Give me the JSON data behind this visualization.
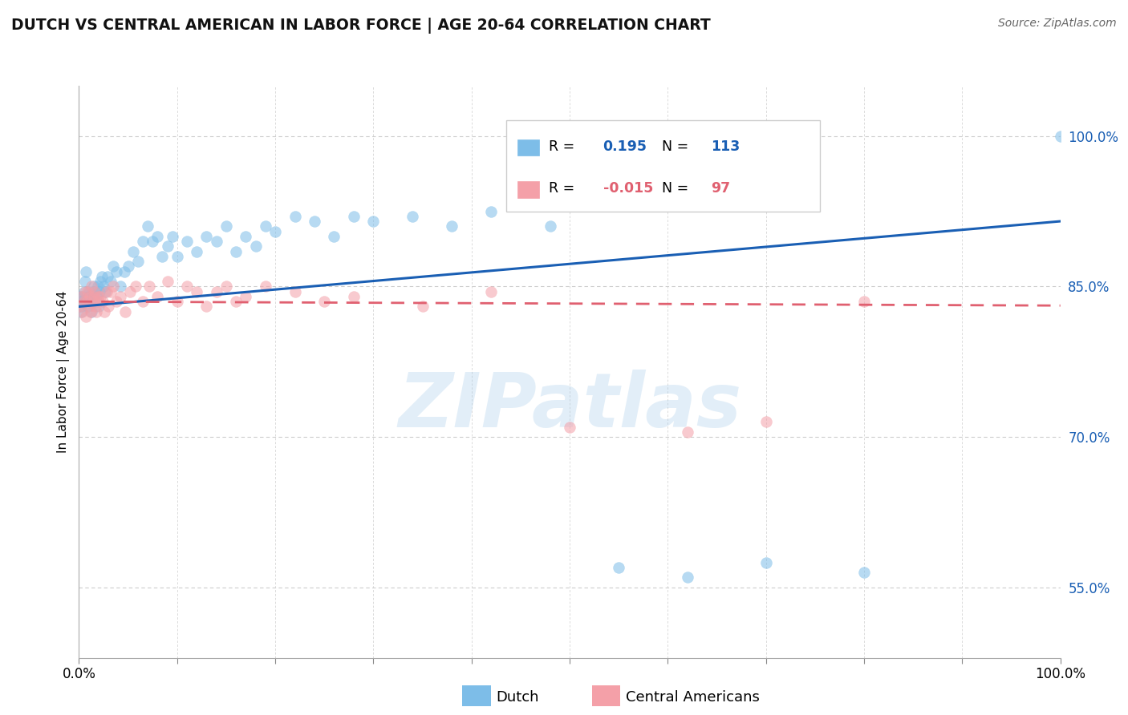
{
  "title": "DUTCH VS CENTRAL AMERICAN IN LABOR FORCE | AGE 20-64 CORRELATION CHART",
  "source": "Source: ZipAtlas.com",
  "ylabel": "In Labor Force | Age 20-64",
  "right_ytick_values": [
    55.0,
    70.0,
    85.0,
    100.0
  ],
  "legend_entries": [
    {
      "label": "Dutch",
      "R": "0.195",
      "N": "113",
      "marker_color": "#a8c8e8",
      "R_color": "#1a6faf",
      "N_color": "#1a6faf"
    },
    {
      "label": "Central Americans",
      "R": "-0.015",
      "N": "97",
      "marker_color": "#f8b8c0",
      "R_color": "#c0392b",
      "N_color": "#c0392b"
    }
  ],
  "watermark": "ZIPatlas",
  "blue_color": "#7dbde8",
  "pink_color": "#f4a0a8",
  "blue_line_color": "#1a5fb4",
  "pink_line_color": "#e06070",
  "blue_scatter_x": [
    0.1,
    0.15,
    0.2,
    0.25,
    0.3,
    0.4,
    0.5,
    0.6,
    0.7,
    0.8,
    0.9,
    1.0,
    1.1,
    1.2,
    1.3,
    1.4,
    1.5,
    1.6,
    1.7,
    1.8,
    1.9,
    2.0,
    2.1,
    2.2,
    2.3,
    2.5,
    2.7,
    2.9,
    3.2,
    3.5,
    3.8,
    4.2,
    4.6,
    5.0,
    5.5,
    6.0,
    6.5,
    7.0,
    7.5,
    8.0,
    8.5,
    9.0,
    9.5,
    10.0,
    11.0,
    12.0,
    13.0,
    14.0,
    15.0,
    16.0,
    17.0,
    18.0,
    19.0,
    20.0,
    22.0,
    24.0,
    26.0,
    28.0,
    30.0,
    34.0,
    38.0,
    42.0,
    48.0,
    55.0,
    62.0,
    70.0,
    80.0,
    100.0
  ],
  "blue_scatter_y": [
    83.5,
    84.0,
    82.5,
    83.0,
    83.5,
    84.0,
    84.5,
    85.5,
    86.5,
    84.0,
    83.0,
    84.5,
    84.0,
    83.5,
    82.5,
    84.0,
    85.0,
    84.5,
    83.5,
    84.0,
    85.0,
    83.0,
    84.5,
    85.5,
    86.0,
    85.0,
    84.5,
    86.0,
    85.5,
    87.0,
    86.5,
    85.0,
    86.5,
    87.0,
    88.5,
    87.5,
    89.5,
    91.0,
    89.5,
    90.0,
    88.0,
    89.0,
    90.0,
    88.0,
    89.5,
    88.5,
    90.0,
    89.5,
    91.0,
    88.5,
    90.0,
    89.0,
    91.0,
    90.5,
    92.0,
    91.5,
    90.0,
    92.0,
    91.5,
    92.0,
    91.0,
    92.5,
    91.0,
    57.0,
    56.0,
    57.5,
    56.5,
    100.0
  ],
  "pink_scatter_x": [
    0.1,
    0.2,
    0.3,
    0.5,
    0.6,
    0.7,
    0.8,
    0.9,
    1.0,
    1.1,
    1.2,
    1.3,
    1.4,
    1.5,
    1.6,
    1.7,
    1.8,
    1.9,
    2.0,
    2.2,
    2.4,
    2.6,
    2.8,
    3.0,
    3.2,
    3.5,
    3.8,
    4.2,
    4.7,
    5.2,
    5.8,
    6.5,
    7.2,
    8.0,
    9.0,
    10.0,
    11.0,
    12.0,
    13.0,
    14.0,
    15.0,
    16.0,
    17.0,
    19.0,
    22.0,
    25.0,
    28.0,
    35.0,
    42.0,
    50.0,
    62.0,
    70.0,
    80.0
  ],
  "pink_scatter_y": [
    83.0,
    84.0,
    82.5,
    83.5,
    84.5,
    82.0,
    83.5,
    84.5,
    83.0,
    84.0,
    82.5,
    85.0,
    83.5,
    84.0,
    84.5,
    83.0,
    82.5,
    84.0,
    83.5,
    84.0,
    83.5,
    82.5,
    84.5,
    83.0,
    84.5,
    85.0,
    83.5,
    84.0,
    82.5,
    84.5,
    85.0,
    83.5,
    85.0,
    84.0,
    85.5,
    83.5,
    85.0,
    84.5,
    83.0,
    84.5,
    85.0,
    83.5,
    84.0,
    85.0,
    84.5,
    83.5,
    84.0,
    83.0,
    84.5,
    71.0,
    70.5,
    71.5,
    83.5
  ],
  "blue_line_x0": 0,
  "blue_line_x1": 100,
  "blue_line_y0": 83.0,
  "blue_line_y1": 91.5,
  "pink_line_x0": 0,
  "pink_line_x1": 100,
  "pink_line_y0": 83.5,
  "pink_line_y1": 83.1,
  "xlim": [
    0,
    100
  ],
  "ylim": [
    48,
    105
  ],
  "grid_dashes": [
    4,
    3
  ],
  "grid_color": "#cccccc",
  "scatter_alpha": 0.55,
  "scatter_size": 100
}
